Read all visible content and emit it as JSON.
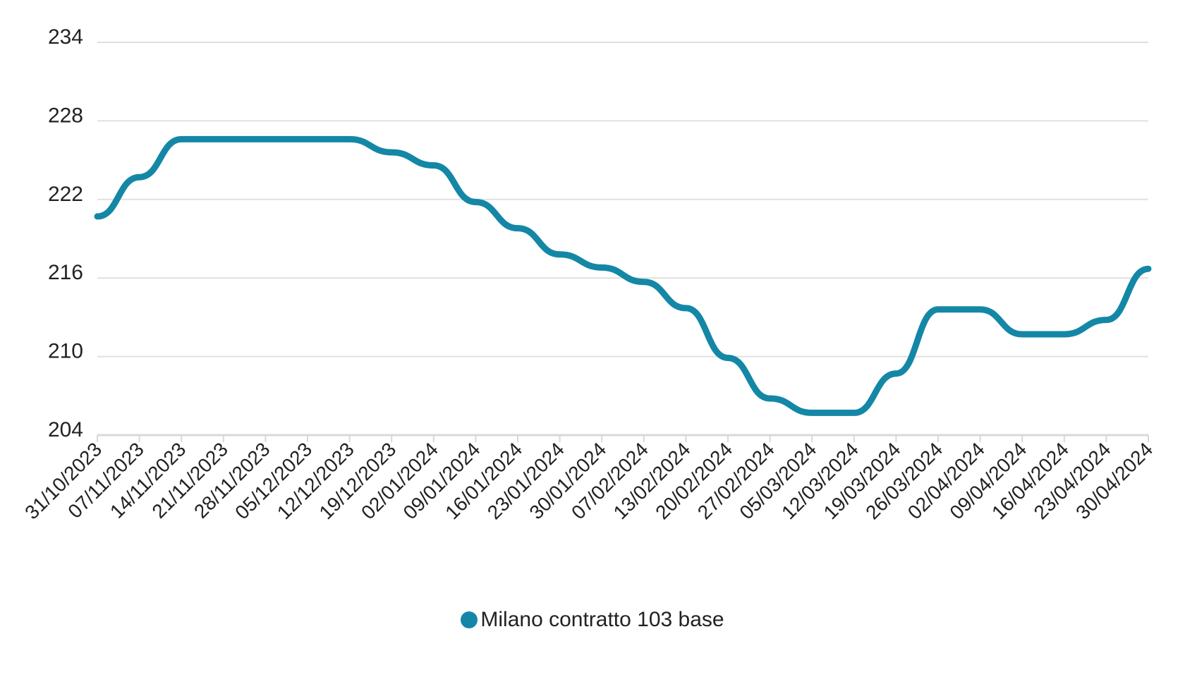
{
  "chart_data": {
    "type": "line",
    "title": "",
    "xlabel": "",
    "ylabel": "",
    "ylim": [
      204,
      234
    ],
    "yticks": [
      "204",
      "210",
      "216",
      "222",
      "228",
      "234"
    ],
    "grid": true,
    "legend_position": "bottom-center",
    "color": "#1487a6",
    "categories": [
      "31/10/2023",
      "07/11/2023",
      "14/11/2023",
      "21/11/2023",
      "28/11/2023",
      "05/12/2023",
      "12/12/2023",
      "19/12/2023",
      "02/01/2024",
      "09/01/2024",
      "16/01/2024",
      "23/01/2024",
      "30/01/2024",
      "07/02/2024",
      "13/02/2024",
      "20/02/2024",
      "27/02/2024",
      "05/03/2024",
      "12/03/2024",
      "19/03/2024",
      "26/03/2024",
      "02/04/2024",
      "09/04/2024",
      "16/04/2024",
      "23/04/2024",
      "30/04/2024"
    ],
    "series": [
      {
        "name": "Milano contratto 103 base",
        "values": [
          220.7,
          223.7,
          226.6,
          226.6,
          226.6,
          226.6,
          226.6,
          225.6,
          224.6,
          221.8,
          219.8,
          217.8,
          216.8,
          215.7,
          213.7,
          209.9,
          206.8,
          205.7,
          205.7,
          208.7,
          213.6,
          213.6,
          211.7,
          211.7,
          212.8,
          216.7
        ]
      }
    ]
  }
}
